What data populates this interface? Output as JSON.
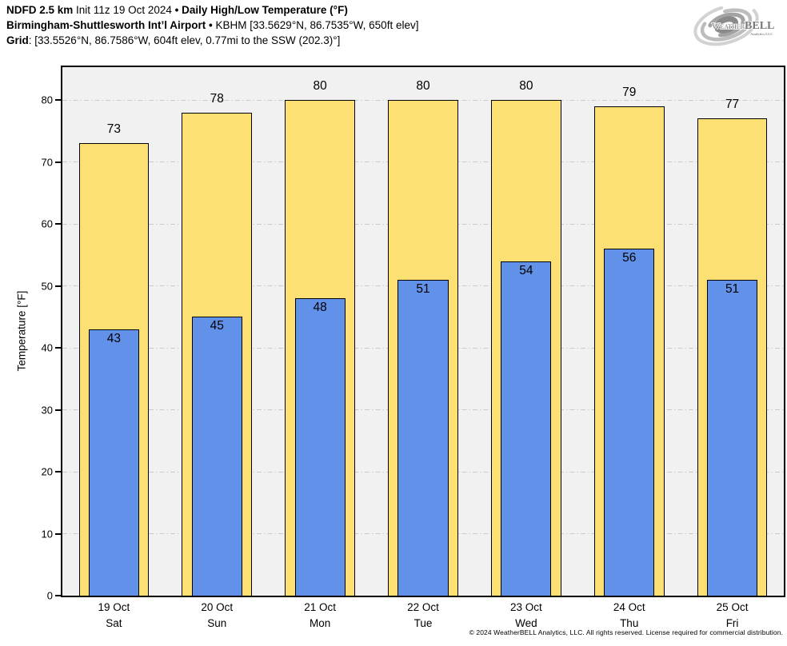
{
  "header": {
    "model": "NDFD 2.5 km",
    "init": "Init 11z 19 Oct 2024",
    "sep": "•",
    "product": "Daily High/Low Temperature (°F)",
    "station_name": "Birmingham-Shuttlesworth Int’l Airport",
    "station_sep": "•",
    "station_details": "KBHM [33.5629°N, 86.7535°W, 650ft elev]",
    "grid_label": "Grid",
    "grid_details": ": [33.5526°N, 86.7586°W, 604ft elev, 0.77mi to the SSW (202.3)°]"
  },
  "logo": {
    "brand_weather": "Weather",
    "brand_bell": "BELL",
    "subtext": "Analytics LLC"
  },
  "chart_data": {
    "type": "bar",
    "title": "Daily High/Low Temperature (°F)",
    "categories": [
      "19 Oct",
      "20 Oct",
      "21 Oct",
      "22 Oct",
      "23 Oct",
      "24 Oct",
      "25 Oct"
    ],
    "weekdays": [
      "Sat",
      "Sun",
      "Mon",
      "Tue",
      "Wed",
      "Thu",
      "Fri"
    ],
    "series": [
      {
        "name": "High",
        "color": "#FCE074",
        "edge_color": "#000000",
        "values": [
          73,
          78,
          80,
          80,
          80,
          79,
          77
        ]
      },
      {
        "name": "Low",
        "color": "#6191E8",
        "edge_color": "#000000",
        "values": [
          43,
          45,
          48,
          51,
          54,
          56,
          51
        ]
      }
    ],
    "xlabel": "",
    "ylabel": "Temperature [°F]",
    "yticks": [
      0,
      10,
      20,
      30,
      40,
      50,
      60,
      70,
      80
    ],
    "ylim": [
      0,
      85.3
    ],
    "grid": true,
    "gridline_style": "dash-dot",
    "gridline_color": "#CBCBCB",
    "plot_background": "#F1F1F1",
    "legend_position": "none",
    "value_label_placement": {
      "high": "above bar",
      "low": "inside bar top"
    }
  },
  "footer": {
    "copyright": "© 2024 WeatherBELL Analytics, LLC. All rights reserved. License required for commercial distribution."
  }
}
